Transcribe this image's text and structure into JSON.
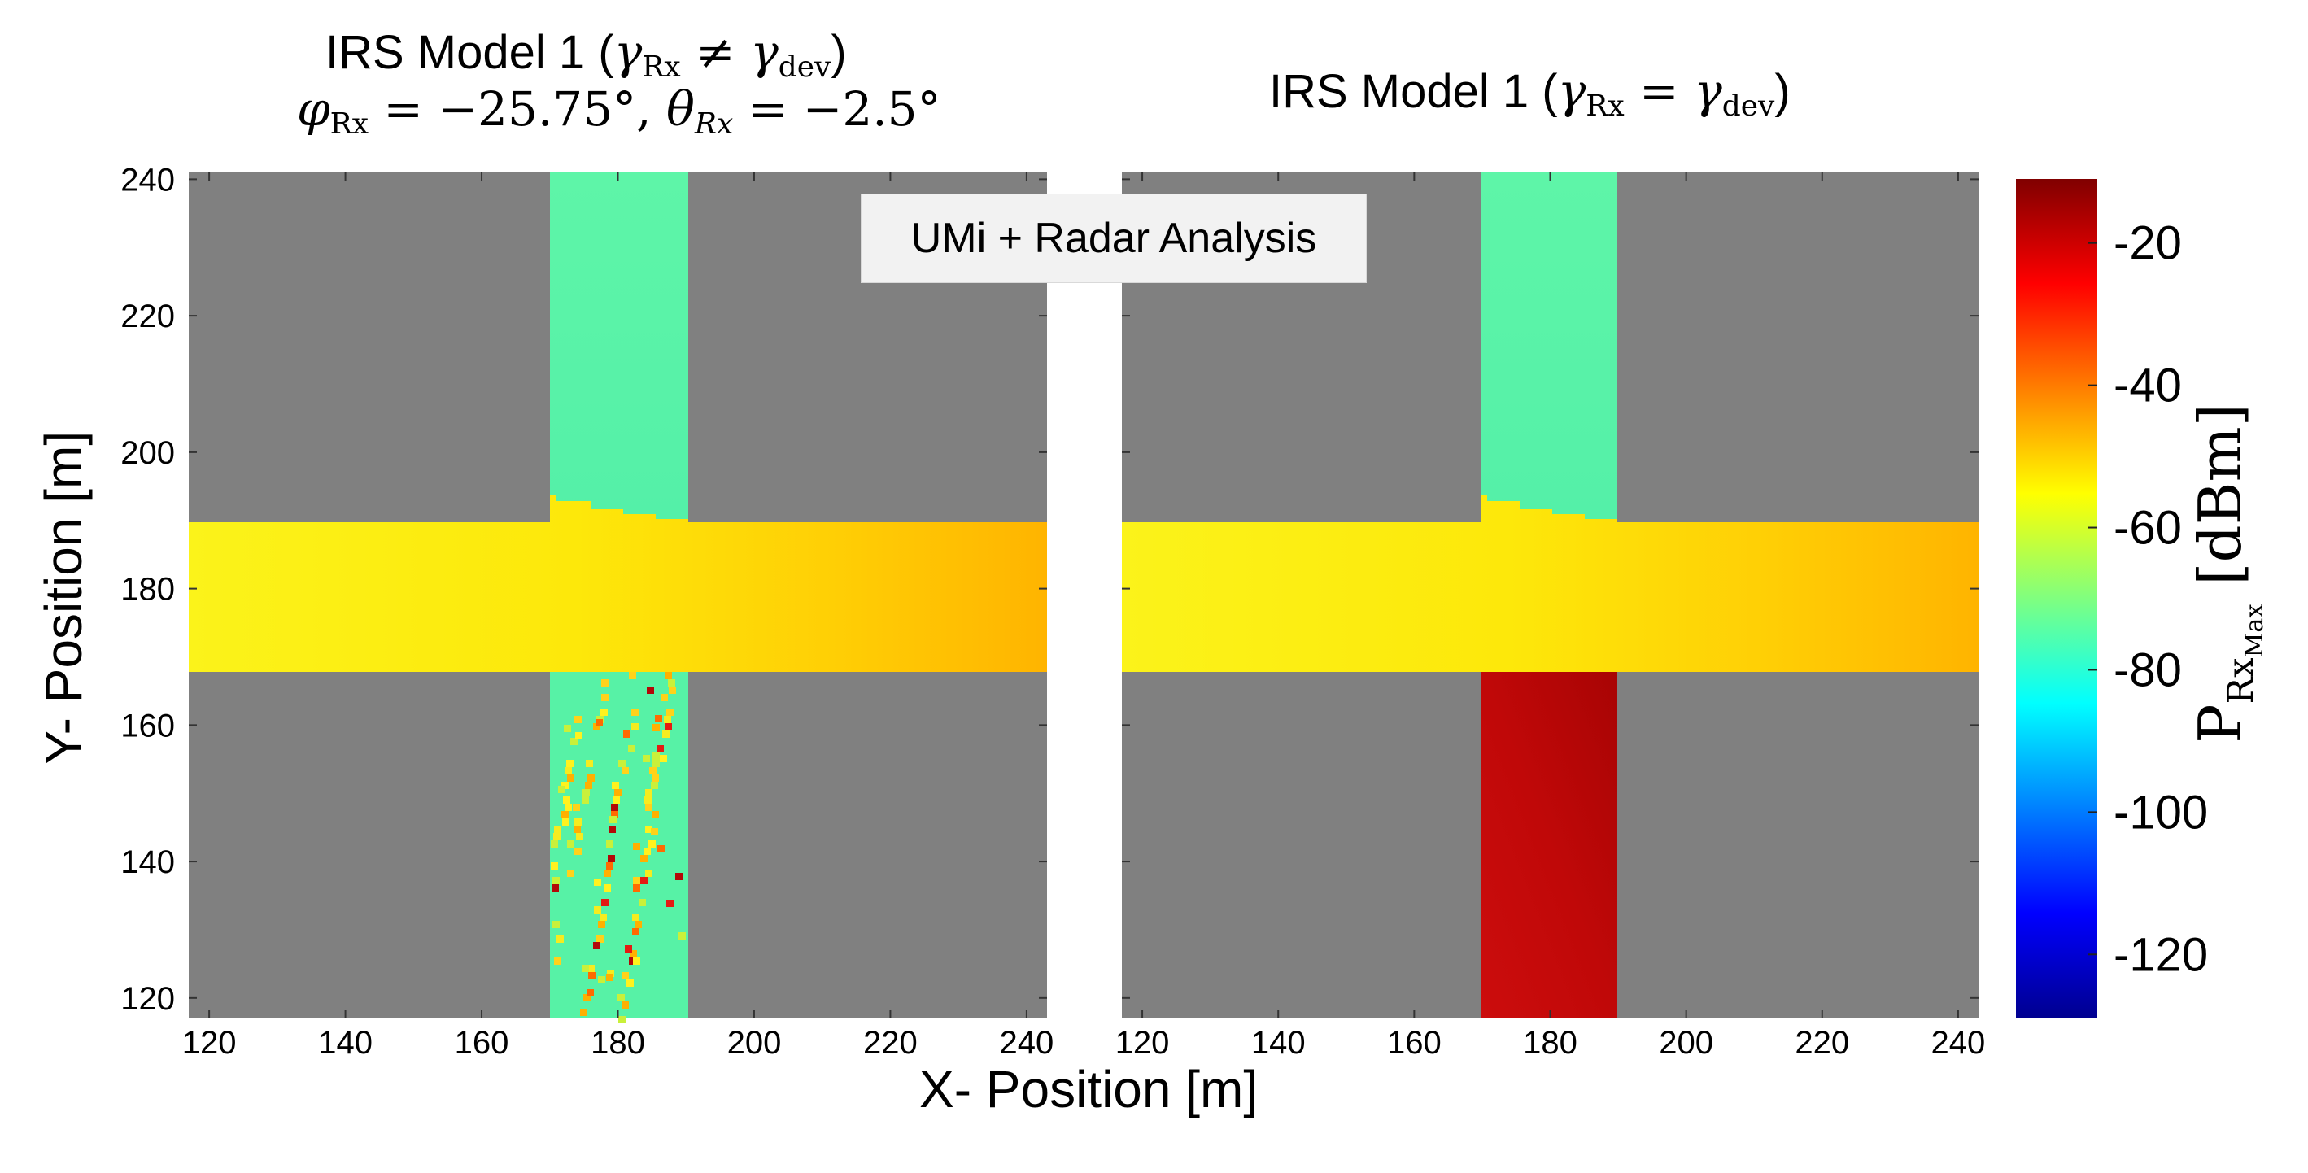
{
  "figure": {
    "annotation": "UMi + Radar Analysis",
    "xlabel": "X- Position [m]",
    "ylabel": "Y- Position [m]"
  },
  "left_title": {
    "line1_prefix": "IRS Model 1 (",
    "gamma": "γ",
    "rx": "Rx",
    "neq": " ≠ ",
    "dev": "dev",
    "close": ")",
    "phi": "φ",
    "phi_val": " = −25.75°, ",
    "theta": "θ",
    "rx_italic": "Rx",
    "theta_val": " = −2.5°"
  },
  "right_title": {
    "prefix": "IRS Model 1 (",
    "gamma": "γ",
    "rx": "Rx",
    "eq": " = ",
    "dev": "dev",
    "close": ")"
  },
  "colorbar": {
    "label_main": "P",
    "label_sub": "Rx",
    "label_subsub": "Max",
    "unit": " [dBm]",
    "colormap": "jet",
    "range": [
      -129,
      -11
    ],
    "ticks": [
      "-20",
      "-40",
      "-60",
      "-80",
      "-100",
      "-120"
    ]
  },
  "colors": {
    "background_gray": "#808080",
    "street_cross": "#57f2a6",
    "red_street": "#c40a0a"
  },
  "chart_data": [
    {
      "type": "heatmap",
      "title": "IRS Model 1 (γRx ≠ γdev) φRx = −25.75°, θRx = −2.5°",
      "xlim": [
        117,
        243
      ],
      "ylim": [
        117,
        241
      ],
      "xticks": [
        120,
        140,
        160,
        180,
        200,
        220,
        240
      ],
      "yticks": [
        120,
        140,
        160,
        180,
        200,
        220,
        240
      ],
      "background": "no coverage (gray)",
      "regions": [
        {
          "name": "horizontal street",
          "x": [
            117,
            243
          ],
          "y": [
            169,
            191
          ],
          "value_start": -55,
          "value_end": -45
        },
        {
          "name": "vertical street north",
          "x": [
            170,
            190
          ],
          "y": [
            191,
            241
          ],
          "value": -78
        },
        {
          "name": "vertical street south",
          "x": [
            170,
            190
          ],
          "y": [
            117,
            169
          ],
          "value": -78,
          "note": "scattered hotspots -60 to -25"
        }
      ]
    },
    {
      "type": "heatmap",
      "title": "IRS Model 1 (γRx = γdev)",
      "xlim": [
        117,
        243
      ],
      "ylim": [
        117,
        241
      ],
      "xticks": [
        120,
        140,
        160,
        180,
        200,
        220,
        240
      ],
      "yticks": [
        120,
        140,
        160,
        180,
        200,
        220,
        240
      ],
      "background": "no coverage (gray)",
      "regions": [
        {
          "name": "horizontal street",
          "x": [
            117,
            243
          ],
          "y": [
            169,
            191
          ],
          "value_start": -55,
          "value_end": -45
        },
        {
          "name": "vertical street north",
          "x": [
            170,
            190
          ],
          "y": [
            191,
            241
          ],
          "value": -78
        },
        {
          "name": "vertical street south",
          "x": [
            170,
            190
          ],
          "y": [
            117,
            169
          ],
          "value": -17
        }
      ]
    }
  ]
}
